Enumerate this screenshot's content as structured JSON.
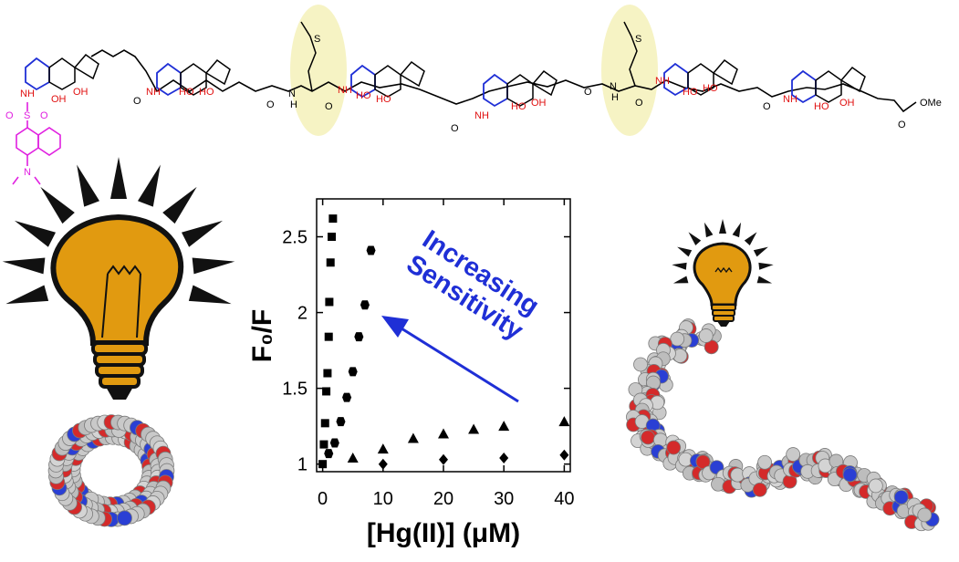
{
  "colors": {
    "steroid_ring": "#1f2fd6",
    "hydroxyl": "#e01010",
    "dansyl": "#e020e0",
    "methionine_highlight": "#f6f3c4",
    "bulb_glass": "#e19a10",
    "bulb_rays": "#111111",
    "annotation": "#1f2fd6",
    "atom_carbon": "#c9c9c9",
    "atom_oxygen": "#d42a2a",
    "atom_nitrogen": "#2a3fd4"
  },
  "structure": {
    "groups": {
      "amide": "NH",
      "amide_n": "N",
      "amine_h": "H",
      "hydroxyl": "HO",
      "hydroxyl_b": "OH",
      "oxygen": "O",
      "sulfur": "S",
      "ester_end": "OMe"
    },
    "icons": [
      "steroid-ring-icon",
      "dansyl-fluorophore-icon",
      "thioether-sidechain-icon"
    ]
  },
  "illustrations": {
    "left": [
      "large-light-bulb-icon",
      "cyclic-oligomer-space-fill-icon"
    ],
    "right": [
      "small-light-bulb-icon",
      "linear-oligomer-space-fill-icon"
    ]
  },
  "annotation": {
    "line1": "Increasing",
    "line2": "Sensitivity"
  },
  "chart_data": {
    "type": "scatter",
    "xlabel": "[Hg(II)] (μM)",
    "ylabel": "F₀/F",
    "xlim": [
      -1,
      41
    ],
    "ylim": [
      0.95,
      2.75
    ],
    "xticks": [
      "0",
      "10",
      "20",
      "30",
      "40"
    ],
    "yticks": [
      "1",
      "1.5",
      "2",
      "2.5"
    ],
    "xtick_values": [
      0,
      10,
      20,
      30,
      40
    ],
    "ytick_values": [
      1,
      1.5,
      2,
      2.5
    ],
    "grid": false,
    "legend": "none",
    "series": [
      {
        "marker": "square",
        "x": [
          0,
          0.2,
          0.4,
          0.6,
          0.8,
          1.0,
          1.1,
          1.3,
          1.5,
          1.7
        ],
        "y": [
          1.0,
          1.13,
          1.27,
          1.48,
          1.6,
          1.84,
          2.07,
          2.33,
          2.5,
          2.62
        ]
      },
      {
        "marker": "circle",
        "x": [
          1,
          2,
          3,
          4,
          5,
          6,
          7,
          8
        ],
        "y": [
          1.07,
          1.14,
          1.28,
          1.44,
          1.61,
          1.84,
          2.05,
          2.41
        ]
      },
      {
        "marker": "triangle",
        "x": [
          5,
          10,
          15,
          20,
          25,
          30,
          40
        ],
        "y": [
          1.04,
          1.1,
          1.17,
          1.2,
          1.23,
          1.25,
          1.28
        ]
      },
      {
        "marker": "diamond",
        "x": [
          10,
          20,
          30,
          40
        ],
        "y": [
          1.0,
          1.03,
          1.04,
          1.06
        ]
      }
    ]
  }
}
